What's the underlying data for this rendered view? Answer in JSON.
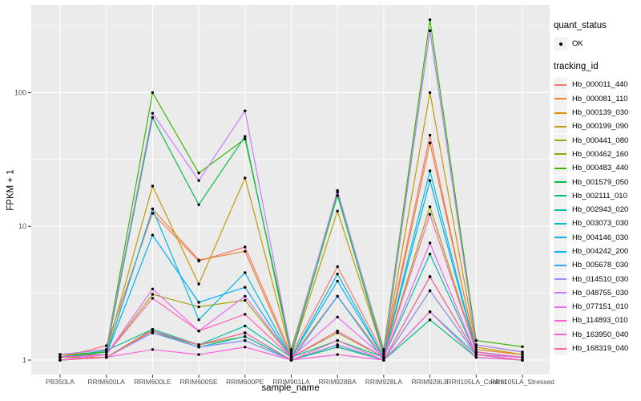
{
  "chart_data": {
    "type": "line",
    "title": "",
    "xlabel": "sample_name",
    "ylabel": "FPKM + 1",
    "y_scale": "log10",
    "y_ticks": [
      1,
      10,
      100
    ],
    "y_minor_ticks": [
      3.162,
      31.62,
      316.2
    ],
    "ylim": [
      0.78,
      453
    ],
    "grid": true,
    "panel_bg": "#EBEBEB",
    "grid_color": "#FFFFFF",
    "tick_color": "#333333",
    "tick_label_color": "#4D4D4D",
    "point_color": "#000000",
    "legend_position": "right",
    "categories": [
      "PB350LA",
      "RRIM600LA",
      "RRIM600LE",
      "RRIM600SE",
      "RRIM600PE",
      "RRIM901LA",
      "RRIM928BA",
      "RRIM928LA",
      "RRIM928LE",
      "RRII105LA_Control",
      "RRII105LA_Stressed"
    ],
    "legend": {
      "quant_status": {
        "title": "quant_status",
        "items": [
          {
            "label": "OK",
            "marker": "point",
            "color": "#000000"
          }
        ]
      },
      "tracking_id": {
        "title": "tracking_id"
      }
    },
    "series": [
      {
        "name": "Hb_000011_440",
        "color": "#F8766D",
        "values": [
          1.05,
          1.28,
          12.5,
          5.5,
          7.0,
          1.1,
          5.0,
          1.1,
          48,
          1.15,
          1.05
        ]
      },
      {
        "name": "Hb_000081_110",
        "color": "#EA8331",
        "values": [
          1.1,
          1.1,
          13.5,
          5.6,
          6.5,
          1.05,
          3.0,
          1.05,
          42,
          1.2,
          1.1
        ]
      },
      {
        "name": "Hb_000139_030",
        "color": "#D89000",
        "values": [
          1.05,
          1.05,
          1.7,
          1.3,
          1.6,
          1.0,
          1.3,
          1.0,
          4.2,
          1.1,
          1.05
        ]
      },
      {
        "name": "Hb_000199_090",
        "color": "#C09B00",
        "values": [
          1.1,
          1.15,
          20,
          3.7,
          23,
          1.1,
          13,
          1.1,
          100,
          1.25,
          1.1
        ]
      },
      {
        "name": "Hb_000441_080",
        "color": "#A3A500",
        "values": [
          1.05,
          1.1,
          3.1,
          2.5,
          2.8,
          1.05,
          1.6,
          1.05,
          14,
          1.15,
          1.05
        ]
      },
      {
        "name": "Hb_000462_160",
        "color": "#7CAE00",
        "values": [
          1.0,
          1.05,
          1.6,
          1.3,
          1.5,
          1.0,
          1.3,
          1.0,
          3.3,
          1.1,
          1.0
        ]
      },
      {
        "name": "Hb_000483_440",
        "color": "#39B600",
        "values": [
          1.1,
          1.2,
          100,
          25,
          45,
          1.2,
          18,
          1.2,
          350,
          1.4,
          1.26
        ]
      },
      {
        "name": "Hb_001579_050",
        "color": "#00BB4E",
        "values": [
          1.05,
          1.15,
          65,
          14.5,
          47,
          1.1,
          17,
          1.1,
          290,
          1.3,
          1.15
        ]
      },
      {
        "name": "Hb_002111_010",
        "color": "#00BF7D",
        "values": [
          1.0,
          1.05,
          1.65,
          1.25,
          1.4,
          1.0,
          1.25,
          1.0,
          2.0,
          1.05,
          1.0
        ]
      },
      {
        "name": "Hb_002943_020",
        "color": "#00C1A3",
        "values": [
          1.05,
          1.18,
          1.7,
          1.3,
          1.8,
          1.05,
          1.4,
          1.05,
          6.2,
          1.1,
          1.05
        ]
      },
      {
        "name": "Hb_003073_030",
        "color": "#00BFC4",
        "values": [
          1.0,
          1.05,
          1.6,
          1.25,
          1.5,
          1.0,
          1.3,
          1.0,
          2.3,
          1.1,
          1.0
        ]
      },
      {
        "name": "Hb_004146_030",
        "color": "#00BAE0",
        "values": [
          1.05,
          1.1,
          13.5,
          2.0,
          4.5,
          1.05,
          4.4,
          1.05,
          26,
          1.15,
          1.05
        ]
      },
      {
        "name": "Hb_004242_200",
        "color": "#00B0F6",
        "values": [
          1.05,
          1.1,
          8.6,
          2.7,
          3.5,
          1.05,
          3.9,
          1.05,
          22,
          1.15,
          1.05
        ]
      },
      {
        "name": "Hb_005678_030",
        "color": "#35A2FF",
        "values": [
          1.0,
          1.05,
          1.65,
          1.3,
          1.6,
          1.0,
          3.0,
          1.0,
          4.2,
          1.1,
          1.0
        ]
      },
      {
        "name": "Hb_014510_030",
        "color": "#9590FF",
        "values": [
          1.0,
          1.05,
          1.6,
          1.25,
          1.4,
          1.0,
          1.3,
          1.0,
          3.3,
          1.1,
          1.0
        ]
      },
      {
        "name": "Hb_048755_030",
        "color": "#C77CFF",
        "values": [
          1.1,
          1.2,
          70,
          22,
          73,
          1.15,
          18.5,
          1.15,
          290,
          1.3,
          1.15
        ]
      },
      {
        "name": "Hb_077151_010",
        "color": "#E76BF3",
        "values": [
          1.0,
          1.1,
          3.4,
          1.65,
          3.0,
          1.05,
          2.1,
          1.05,
          7.5,
          1.1,
          1.05
        ]
      },
      {
        "name": "Hb_114893_010",
        "color": "#FA62DB",
        "values": [
          1.0,
          1.05,
          1.2,
          1.1,
          1.25,
          1.0,
          1.1,
          1.0,
          2.3,
          1.05,
          1.0
        ]
      },
      {
        "name": "Hb_163950_040",
        "color": "#FF62BC",
        "values": [
          1.05,
          1.1,
          2.9,
          1.65,
          2.2,
          1.05,
          1.65,
          1.05,
          12.3,
          1.15,
          1.05
        ]
      },
      {
        "name": "Hb_168319_040",
        "color": "#FF6A98",
        "values": [
          1.0,
          1.05,
          1.65,
          1.3,
          1.6,
          1.0,
          1.4,
          1.0,
          4.2,
          1.1,
          1.0
        ]
      }
    ]
  }
}
